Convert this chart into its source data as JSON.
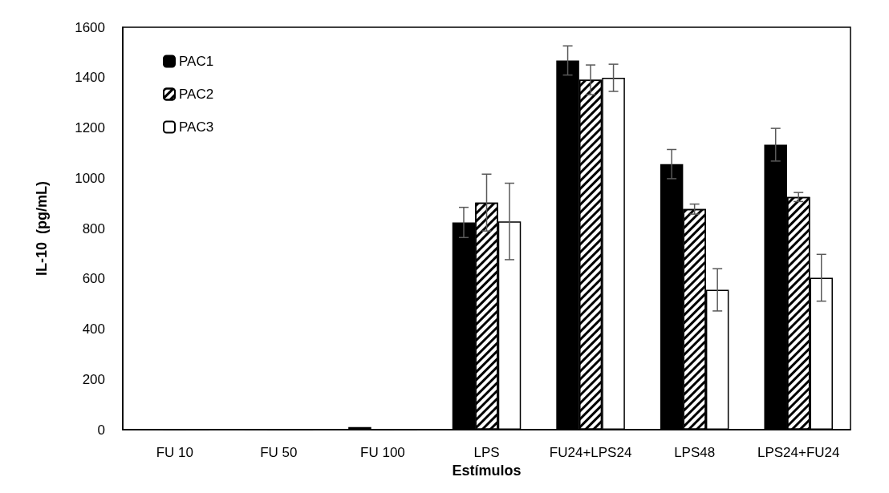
{
  "chart_data": {
    "type": "bar",
    "xlabel": "Estímulos",
    "ylabel": "IL-10  (pg/mL)",
    "categories": [
      "FU 10",
      "FU 50",
      "FU 100",
      "LPS",
      "FU24+LPS24",
      "LPS48",
      "LPS24+FU24"
    ],
    "series": [
      {
        "name": "PAC1",
        "color": "#000000",
        "values": [
          1,
          1,
          10,
          824,
          1468,
          1056,
          1133
        ],
        "errors": [
          null,
          null,
          null,
          60,
          58,
          58,
          65
        ]
      },
      {
        "name": "PAC2",
        "color": "#000000",
        "values": [
          0,
          0,
          0,
          903,
          1391,
          877,
          925
        ],
        "errors": [
          null,
          null,
          null,
          113,
          59,
          20,
          18
        ]
      },
      {
        "name": "PAC3",
        "color": "#ffffff",
        "values": [
          0,
          0,
          0,
          828,
          1399,
          556,
          604
        ],
        "errors": [
          null,
          null,
          null,
          152,
          54,
          84,
          93
        ]
      }
    ],
    "ylim": [
      0,
      1600
    ],
    "yticks": [
      0,
      200,
      400,
      600,
      800,
      1000,
      1200,
      1400,
      1600
    ],
    "grid": false,
    "legend": "top left"
  }
}
